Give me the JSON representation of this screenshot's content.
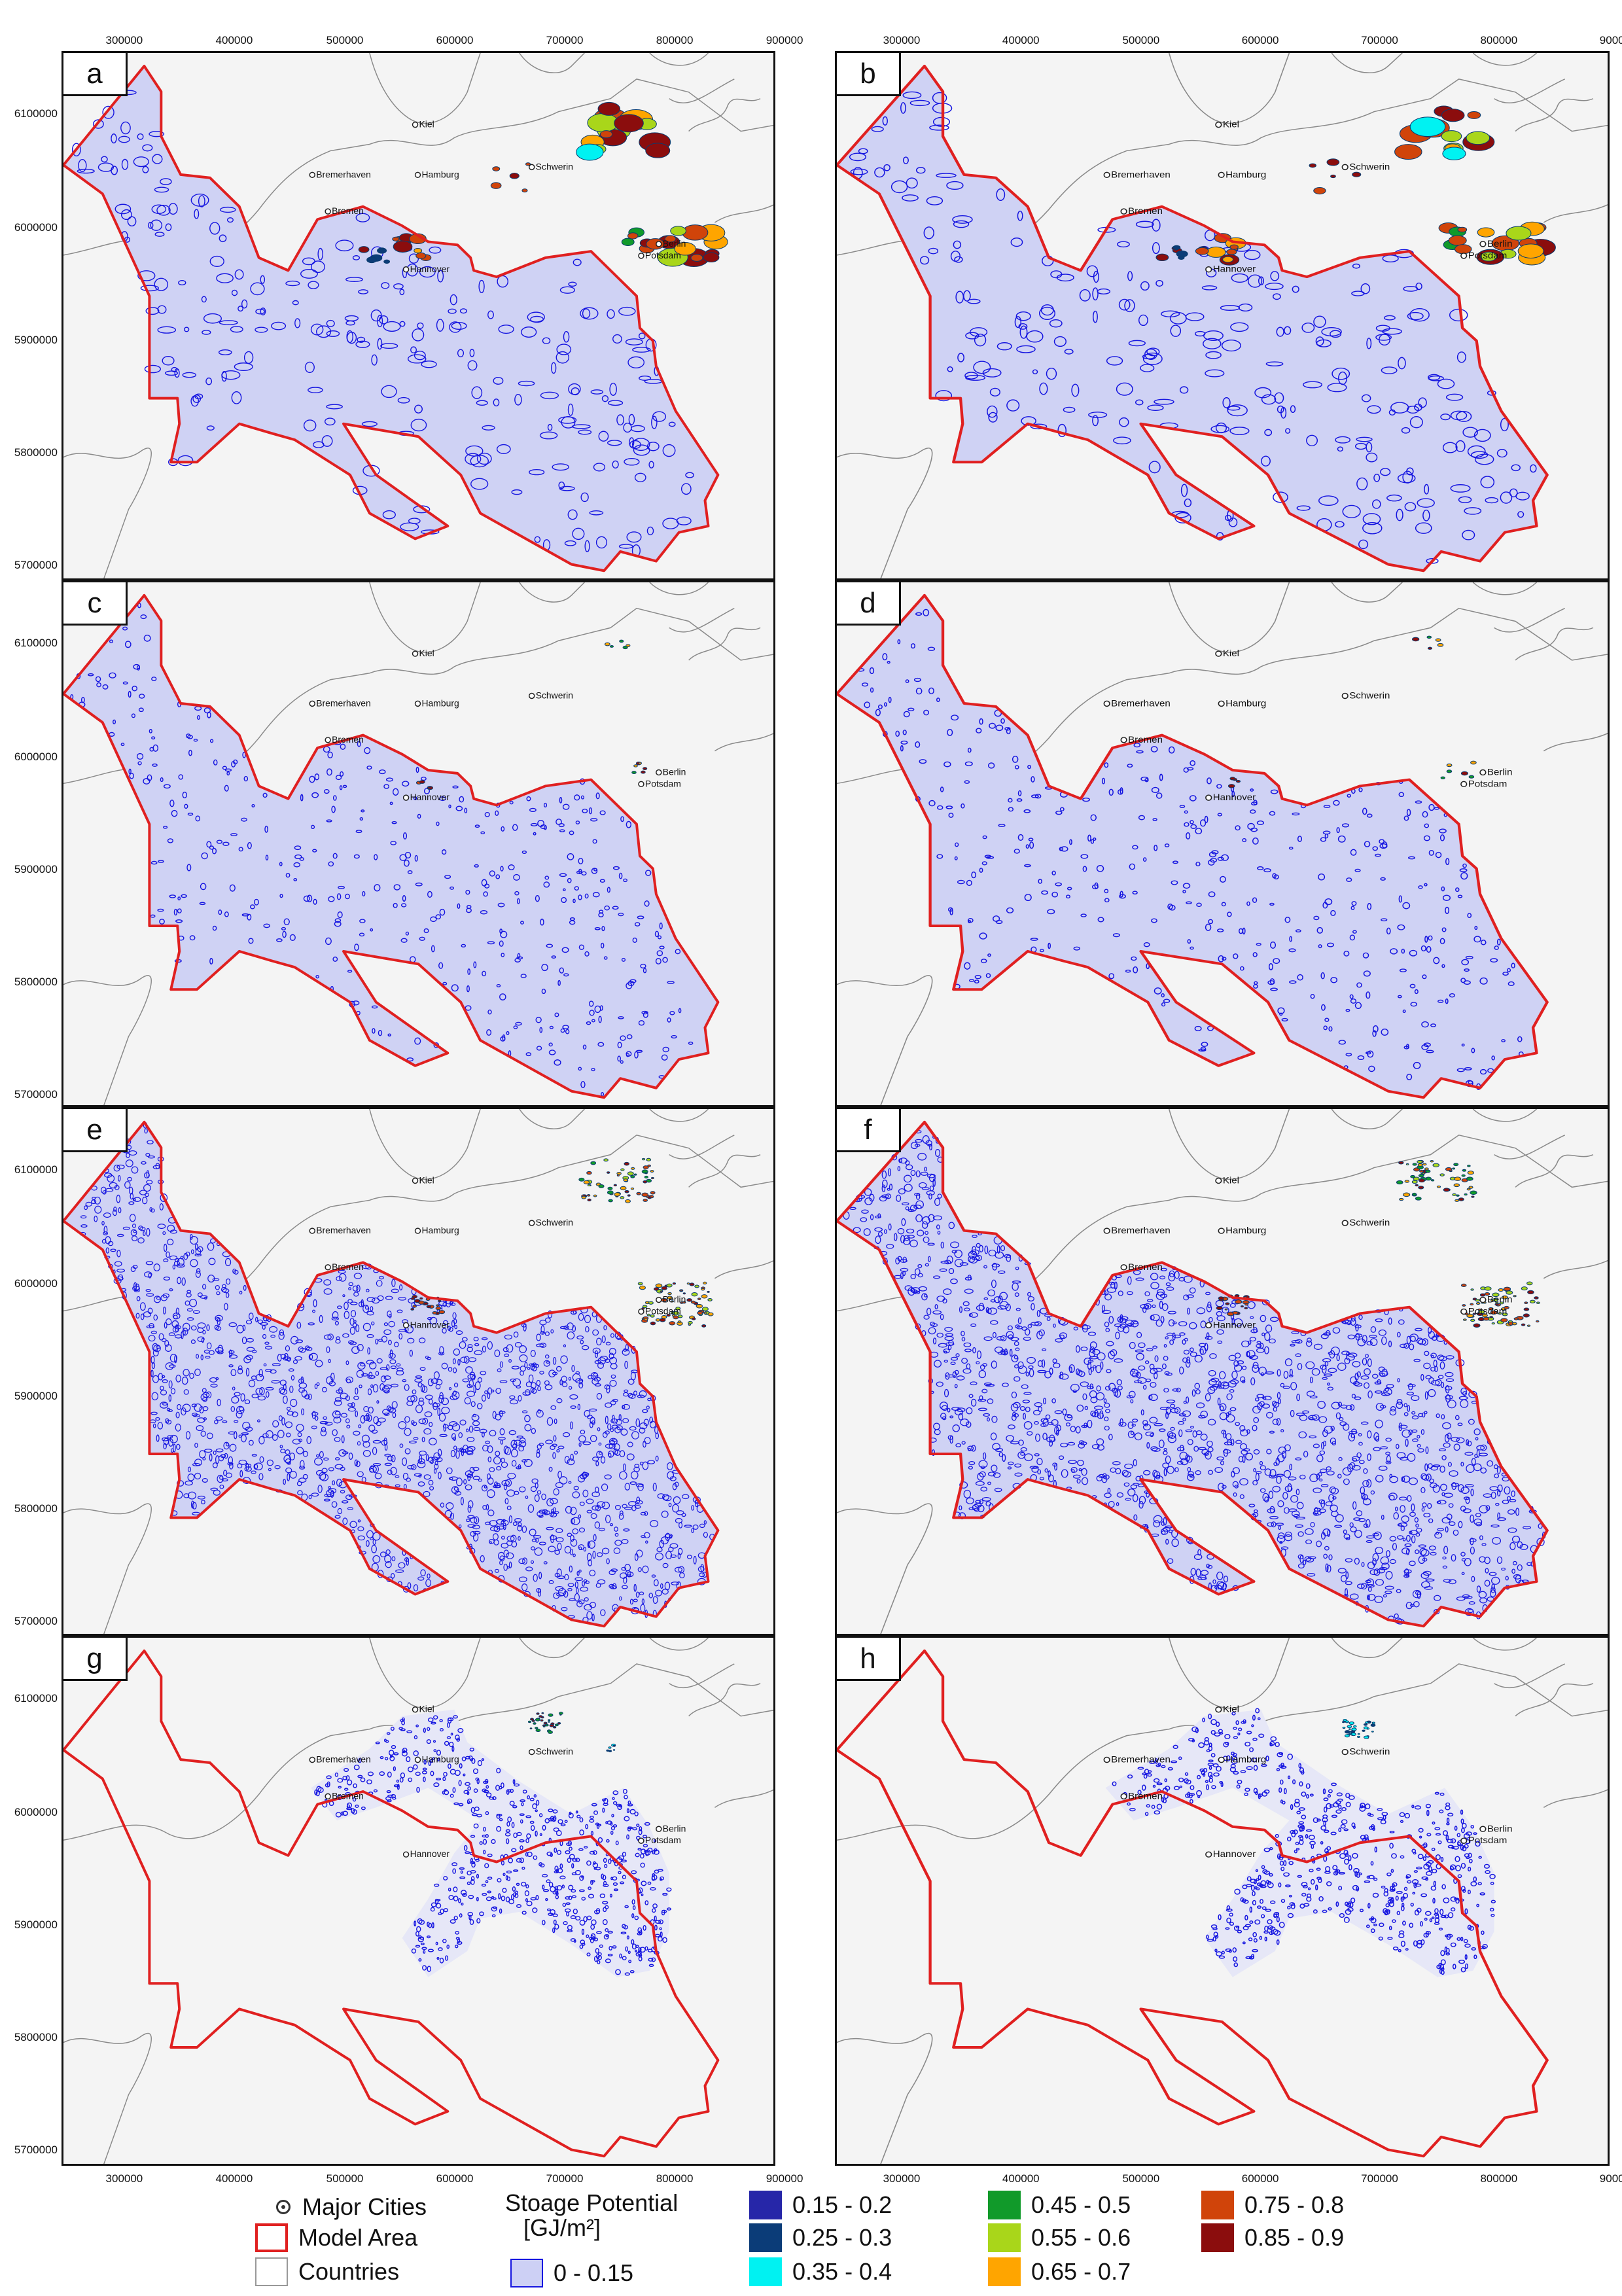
{
  "panels": [
    {
      "label": "a",
      "density": "high",
      "hot": "large"
    },
    {
      "label": "b",
      "density": "high",
      "hot": "large2"
    },
    {
      "label": "c",
      "density": "low",
      "hot": "small"
    },
    {
      "label": "d",
      "density": "low",
      "hot": "small"
    },
    {
      "label": "e",
      "density": "dense",
      "hot": "medium"
    },
    {
      "label": "f",
      "density": "dense",
      "hot": "medium2"
    },
    {
      "label": "g",
      "density": "north",
      "hot": "north_g"
    },
    {
      "label": "h",
      "density": "north",
      "hot": "north_h"
    }
  ],
  "x_ticks": [
    "300000",
    "400000",
    "500000",
    "600000",
    "700000",
    "800000",
    "900000"
  ],
  "y_ticks": [
    "6100000",
    "6000000",
    "5900000",
    "5800000",
    "5700000"
  ],
  "cities": [
    "Kiel",
    "Bremerhaven",
    "Hamburg",
    "Schwerin",
    "Bremen",
    "Berlin",
    "Potsdam",
    "Hannover"
  ],
  "legend": {
    "major_cities": "Major Cities",
    "model_area": "Model Area",
    "countries": "Countries",
    "potential_title_1": "Stoage Potential",
    "potential_title_2": "[GJ/m²]",
    "classes": [
      {
        "label": "0 - 0.15",
        "color": "#cdd0f5"
      },
      {
        "label": "0.15 - 0.2",
        "color": "#2626a8"
      },
      {
        "label": "0.25 - 0.3",
        "color": "#0b3c78"
      },
      {
        "label": "0.35 - 0.4",
        "color": "#00f2f2"
      },
      {
        "label": "0.45 - 0.5",
        "color": "#119a2a"
      },
      {
        "label": "0.55 - 0.6",
        "color": "#a9d61a"
      },
      {
        "label": "0.65 - 0.7",
        "color": "#ffa500"
      },
      {
        "label": "0.75 - 0.8",
        "color": "#d0440a"
      },
      {
        "label": "0.85 - 0.9",
        "color": "#8b0d0d"
      }
    ]
  },
  "colors": {
    "model_area": "#e02020",
    "contour": "#1515e0",
    "fill": "#cfd2f4",
    "land": "#f4f4f4",
    "coast": "#8a8a8a"
  }
}
